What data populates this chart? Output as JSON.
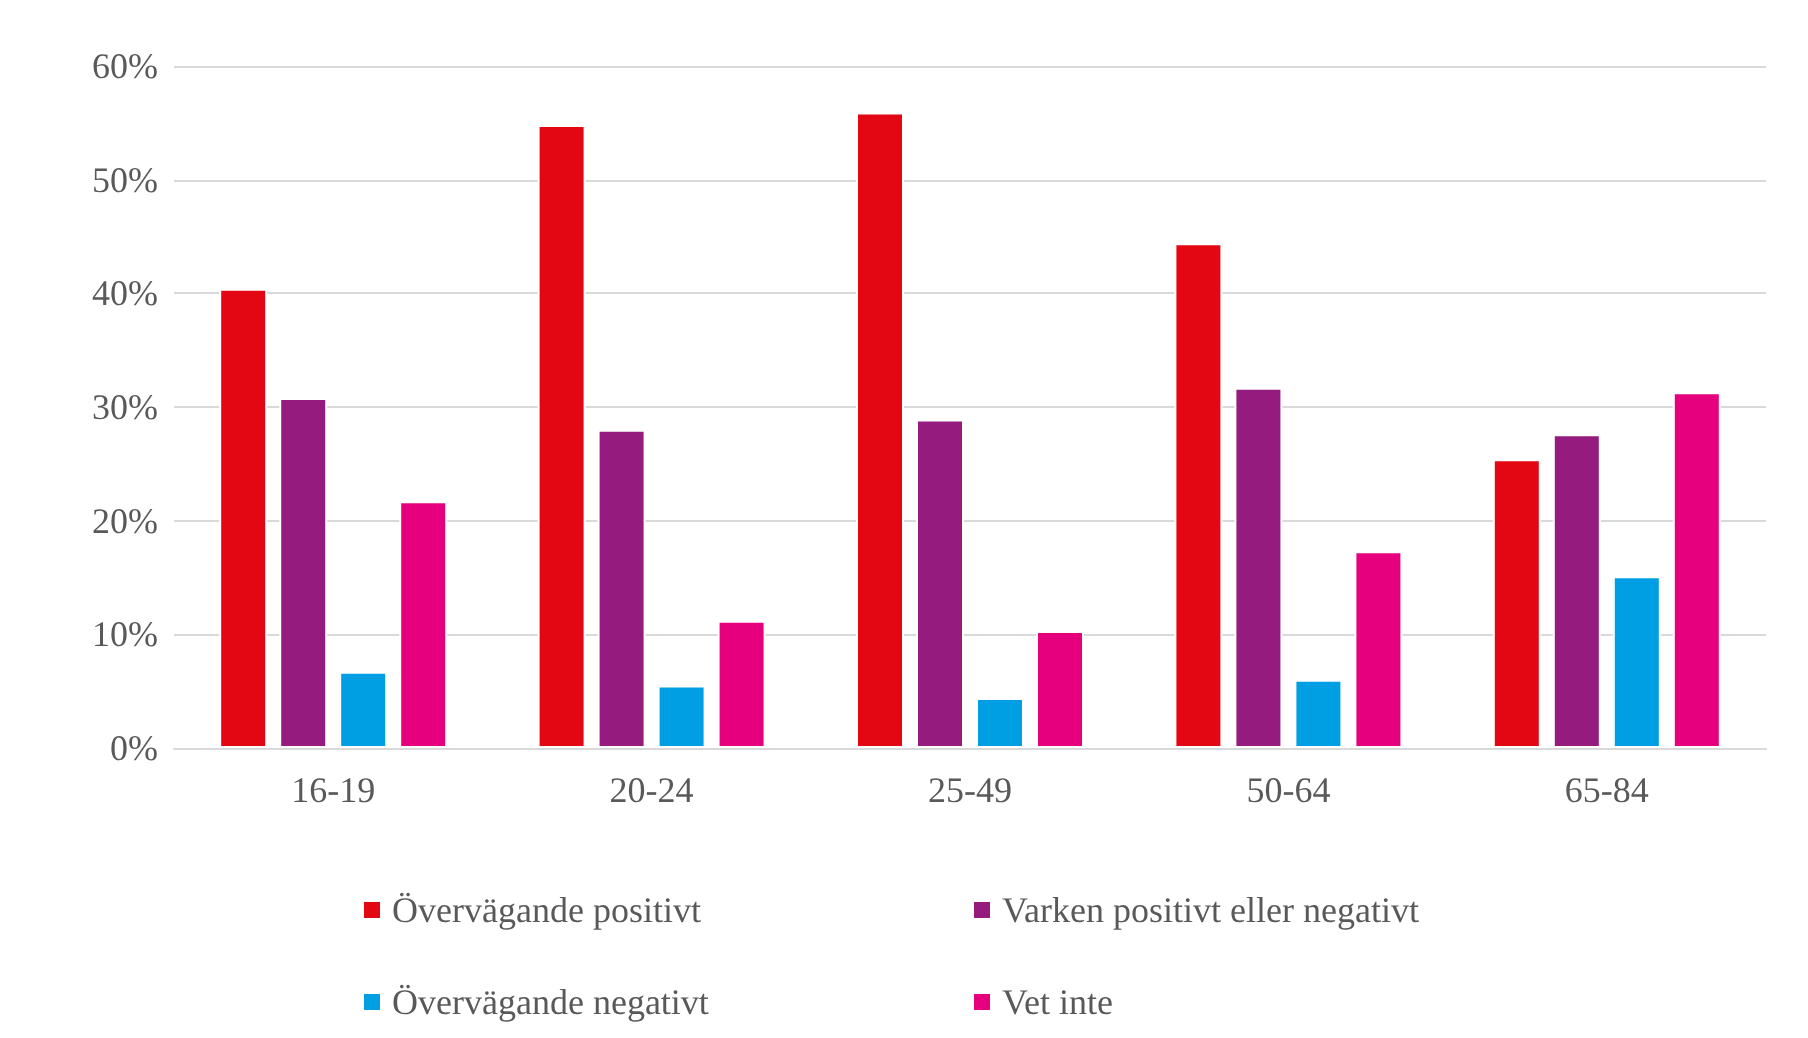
{
  "chart_data": {
    "type": "bar",
    "categories": [
      "16-19",
      "20-24",
      "25-49",
      "50-64",
      "65-84"
    ],
    "series": [
      {
        "name": "Övervägande positivt",
        "color": "#e30613",
        "values": [
          40.4,
          54.8,
          55.9,
          44.4,
          25.4
        ]
      },
      {
        "name": "Varken positivt eller negativt",
        "color": "#951b7f",
        "values": [
          30.8,
          28.0,
          28.9,
          31.7,
          27.6
        ]
      },
      {
        "name": "Övervägande negativt",
        "color": "#009fe3",
        "values": [
          6.7,
          5.5,
          4.4,
          6.0,
          15.1
        ]
      },
      {
        "name": "Vet inte",
        "color": "#e6007e",
        "values": [
          21.7,
          11.2,
          10.3,
          17.3,
          31.3
        ]
      }
    ],
    "ylim": [
      0,
      60
    ],
    "yticks": [
      {
        "value": 0,
        "label": "0%"
      },
      {
        "value": 10,
        "label": "10%"
      },
      {
        "value": 20,
        "label": "20%"
      },
      {
        "value": 30,
        "label": "30%"
      },
      {
        "value": 40,
        "label": "40%"
      },
      {
        "value": 50,
        "label": "50%"
      },
      {
        "value": 60,
        "label": "60%"
      }
    ],
    "grid": "y",
    "legend": "bottom"
  }
}
